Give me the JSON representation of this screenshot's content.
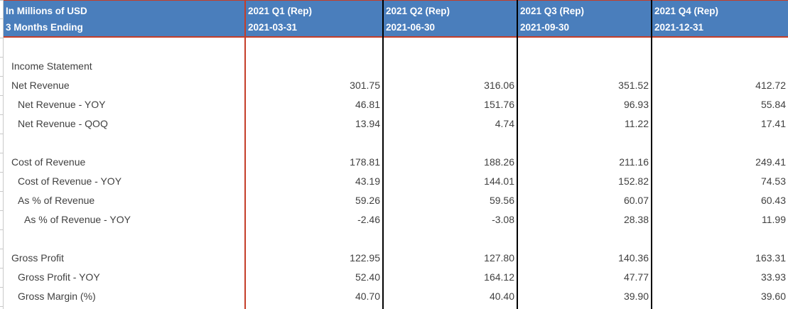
{
  "table": {
    "header": {
      "title_line1": "In Millions of USD",
      "title_line2": "3 Months Ending",
      "columns": [
        {
          "label": "2021 Q1 (Rep)",
          "date": "2021-03-31"
        },
        {
          "label": "2021 Q2 (Rep)",
          "date": "2021-06-30"
        },
        {
          "label": "2021 Q3 (Rep)",
          "date": "2021-09-30"
        },
        {
          "label": "2021 Q4 (Rep)",
          "date": "2021-12-31"
        }
      ]
    },
    "rows": [
      {
        "label": "Income Statement",
        "indent": 0,
        "type": "section",
        "values": [
          "",
          "",
          "",
          ""
        ]
      },
      {
        "label": "Net Revenue",
        "indent": 0,
        "type": "data",
        "values": [
          "301.75",
          "316.06",
          "351.52",
          "412.72"
        ]
      },
      {
        "label": "Net Revenue - YOY",
        "indent": 1,
        "type": "data",
        "values": [
          "46.81",
          "151.76",
          "96.93",
          "55.84"
        ]
      },
      {
        "label": "Net Revenue - QOQ",
        "indent": 1,
        "type": "data",
        "values": [
          "13.94",
          "4.74",
          "11.22",
          "17.41"
        ]
      },
      {
        "label": "",
        "indent": 0,
        "type": "blank",
        "values": [
          "",
          "",
          "",
          ""
        ]
      },
      {
        "label": "Cost of Revenue",
        "indent": 0,
        "type": "data",
        "values": [
          "178.81",
          "188.26",
          "211.16",
          "249.41"
        ]
      },
      {
        "label": "Cost of Revenue - YOY",
        "indent": 1,
        "type": "data",
        "values": [
          "43.19",
          "144.01",
          "152.82",
          "74.53"
        ]
      },
      {
        "label": "As % of Revenue",
        "indent": 1,
        "type": "data",
        "values": [
          "59.26",
          "59.56",
          "60.07",
          "60.43"
        ]
      },
      {
        "label": "As % of Revenue - YOY",
        "indent": 2,
        "type": "data",
        "values": [
          "-2.46",
          "-3.08",
          "28.38",
          "11.99"
        ]
      },
      {
        "label": "",
        "indent": 0,
        "type": "blank",
        "values": [
          "",
          "",
          "",
          ""
        ]
      },
      {
        "label": "Gross Profit",
        "indent": 0,
        "type": "data",
        "values": [
          "122.95",
          "127.80",
          "140.36",
          "163.31"
        ]
      },
      {
        "label": "Gross Profit - YOY",
        "indent": 1,
        "type": "data",
        "values": [
          "52.40",
          "164.12",
          "47.77",
          "33.93"
        ]
      },
      {
        "label": "Gross Margin (%)",
        "indent": 1,
        "type": "data",
        "values": [
          "40.70",
          "40.40",
          "39.90",
          "39.60"
        ]
      }
    ],
    "colors": {
      "header_bg": "#4a7ebc",
      "accent_border": "#c43e29",
      "column_divider": "#000000",
      "gridline": "#c9c9c9",
      "text": "#404040"
    }
  }
}
